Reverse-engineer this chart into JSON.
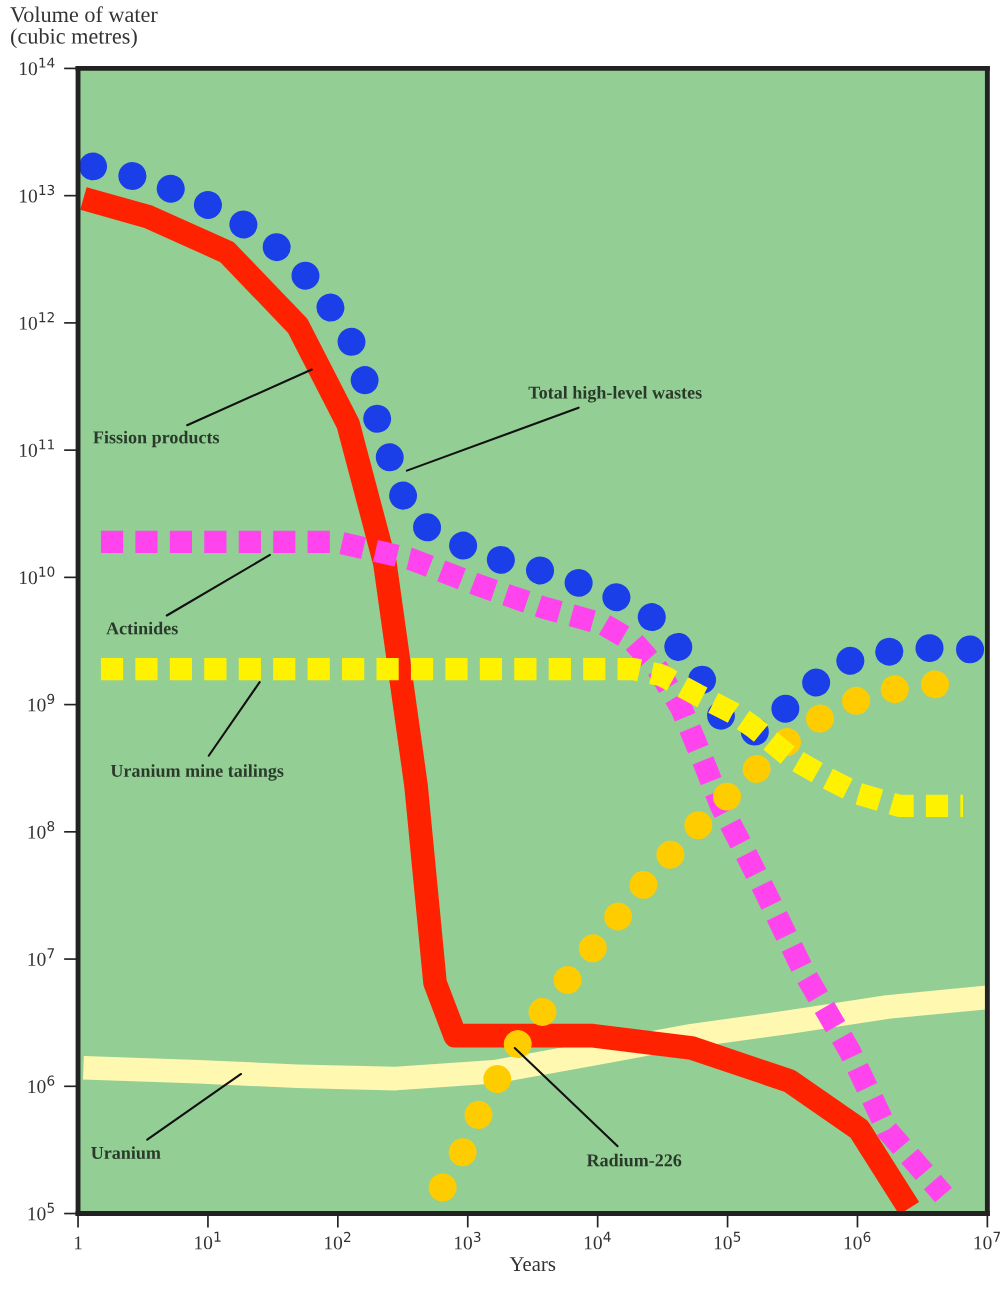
{
  "chart_data": {
    "type": "line",
    "log": "xy",
    "xlabel": "Years",
    "ylabel": "Volume of water\n(cubic metres)",
    "xlim": [
      1,
      10000000
    ],
    "ylim": [
      100000,
      100000000000000
    ],
    "xticks": [
      1,
      {
        "value": 10,
        "label": "10$^{1}$"
      },
      {
        "value": 100,
        "label": "10$^{2}$"
      },
      {
        "value": 1000,
        "label": "10$^{3}$"
      },
      {
        "value": 10000,
        "label": "10$^{4}$"
      },
      {
        "value": 100000,
        "label": "10$^{5}$"
      },
      {
        "value": 1000000,
        "label": "10$^{6}$"
      },
      {
        "value": 10000000,
        "label": "10$^{7}$"
      }
    ],
    "yticks": [
      {
        "value": 100000,
        "label": "10$^{5}$"
      },
      {
        "value": 1000000,
        "label": "10$^{6}$"
      },
      {
        "value": 10000000,
        "label": "10$^{7}$"
      },
      {
        "value": 100000000,
        "label": "10$^{8}$"
      },
      {
        "value": 1000000000,
        "label": "10$^{9}$"
      },
      {
        "value": 10000000000,
        "label": "10$^{10}$"
      },
      {
        "value": 100000000000,
        "label": "10$^{11}$"
      },
      {
        "value": 1000000000000,
        "label": "10$^{12}$"
      },
      {
        "value": 10000000000000,
        "label": "10$^{13}$"
      },
      {
        "value": 100000000000000,
        "label": "10$^{14}$"
      }
    ],
    "grid": false,
    "series": [
      {
        "color": "#fff8b0",
        "line_style": "solid",
        "x": [
          1.1,
          8.4,
          49,
          280,
          1600,
          9200,
          53000,
          300000,
          1700000,
          10000000
        ],
        "values": [
          1400000.0,
          1300000.0,
          1200000.0,
          1150000.0,
          1300000.0,
          1800000.0,
          2500000.0,
          3200000.0,
          4200000.0,
          5000000.0
        ]
      },
      {
        "color": "#ff2200",
        "line_style": "solid",
        "x": [
          1.1,
          3.5,
          14,
          49,
          120,
          230,
          400,
          560,
          800,
          9200,
          53000,
          300000,
          1030000,
          2500000
        ],
        "values": [
          9500000000000.0,
          6800000000000.0,
          3600000000000.0,
          950000000000.0,
          160000000000.0,
          13000000000.0,
          230000000.0,
          6500000.0,
          2500000.0,
          2500000.0,
          2000000.0,
          1100000.0,
          460000.0,
          110000.0
        ]
      },
      {
        "color": "#ff44ee",
        "line_style": "dashed",
        "x": [
          1.5,
          98,
          360,
          1200,
          3800,
          11000,
          19000,
          29000,
          44000,
          63000,
          89000,
          140000,
          200000,
          390000,
          870000,
          1700000,
          4600000
        ],
        "values": [
          19000000000.0,
          19000000000.0,
          14000000000.0,
          8700000000.0,
          5800000000.0,
          4300000000.0,
          3100000000.0,
          1900000000.0,
          940000000.0,
          390000000.0,
          160000000.0,
          66000000.0,
          32000000.0,
          7800000.0,
          1900000.0,
          450000.0,
          140000.0
        ]
      },
      {
        "color": "#ffcc00",
        "line_style": "dotted",
        "x": [
          640,
          870,
          1300,
          2300,
          3500,
          6500,
          13000,
          26000,
          53000,
          120000,
          280000,
          670000,
          1700000,
          5400000
        ],
        "values": [
          160000.0,
          270000.0,
          710000.0,
          2000000.0,
          3500000.0,
          7800000.0,
          19000000.0,
          46000000.0,
          100000000.0,
          230000000.0,
          500000000.0,
          940000000.0,
          1300000000.0,
          1500000000.0
        ]
      },
      {
        "color": "#1a3ee8",
        "line_style": "dotted",
        "x": [
          1.3,
          3.8,
          11,
          29,
          63,
          120,
          170,
          240,
          340,
          500,
          1300,
          4000,
          12000,
          30000,
          63000,
          98000,
          180000,
          390000,
          1000000,
          2900000,
          8400000
        ],
        "values": [
          17000000000000.0,
          13000000000000.0,
          8100000000000.0,
          4600000000000.0,
          2100000000000.0,
          850000000000.0,
          300000000000.0,
          100000000000.0,
          36000000000.0,
          24000000000.0,
          15000000000.0,
          11000000000.0,
          7600000000.0,
          4500000000.0,
          1600000000.0,
          680000000.0,
          600000000.0,
          1300000000.0,
          2400000000.0,
          2800000000.0,
          2700000000.0
        ]
      },
      {
        "color": "#fff200",
        "line_style": "dashed",
        "x": [
          1.5,
          19000,
          31000,
          58000,
          110000,
          160000,
          300000,
          560000,
          1000000,
          2100000,
          6500000
        ],
        "values": [
          1900000000.0,
          1900000000.0,
          1700000000.0,
          1200000000.0,
          860000000.0,
          660000000.0,
          390000000.0,
          270000000.0,
          200000000.0,
          160000000.0,
          160000000.0
        ]
      }
    ],
    "annotations": [
      {
        "text": "Fission products",
        "x": 63,
        "y": 430000000000
      },
      {
        "text": "Total high-level wastes",
        "x": 340,
        "y": 69000000000
      },
      {
        "text": "Actinides",
        "x": 30,
        "y": 15000000000
      },
      {
        "text": "Uranium mine tailings",
        "x": 25,
        "y": 1500000000
      },
      {
        "text": "Uranium",
        "x": 18,
        "y": 1250000
      },
      {
        "text": "Radium-226",
        "x": 2300,
        "y": 2000000
      }
    ]
  }
}
